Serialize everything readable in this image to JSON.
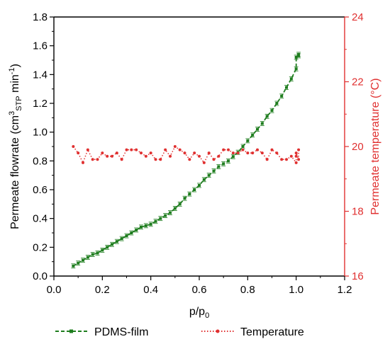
{
  "colors": {
    "flow": "#1e7d1e",
    "temp": "#e03030",
    "axis": "#000000"
  },
  "chart_data": {
    "type": "line",
    "x_label_main": "p/p",
    "x_label_sub": "0",
    "x_ticks": [
      "0.0",
      "0.2",
      "0.4",
      "0.6",
      "0.8",
      "1.0",
      "1.2"
    ],
    "xlim": [
      0.0,
      1.2
    ],
    "y_left": {
      "label_parts": {
        "a": "Permeate flowrate (cm",
        "sup1": "3",
        "sub": "STP",
        "b": " min",
        "sup2": "-1",
        "c": ")"
      },
      "ticks": [
        "0.0",
        "0.2",
        "0.4",
        "0.6",
        "0.8",
        "1.0",
        "1.2",
        "1.4",
        "1.6",
        "1.8"
      ],
      "ylim": [
        0.0,
        1.8
      ]
    },
    "y_right": {
      "label": "Permeate temperature (°C)",
      "ticks": [
        "16",
        "18",
        "20",
        "22",
        "24"
      ],
      "ylim": [
        16,
        24
      ]
    },
    "series": [
      {
        "name": "PDMS-film",
        "axis": "left",
        "style": "dashed",
        "marker": "square",
        "x": [
          0.08,
          0.1,
          0.12,
          0.14,
          0.16,
          0.18,
          0.2,
          0.22,
          0.24,
          0.26,
          0.28,
          0.3,
          0.32,
          0.34,
          0.36,
          0.38,
          0.4,
          0.42,
          0.44,
          0.46,
          0.48,
          0.5,
          0.52,
          0.54,
          0.56,
          0.58,
          0.6,
          0.62,
          0.64,
          0.66,
          0.68,
          0.7,
          0.72,
          0.74,
          0.76,
          0.78,
          0.8,
          0.82,
          0.84,
          0.86,
          0.88,
          0.9,
          0.92,
          0.94,
          0.96,
          0.98,
          1.0,
          1.0,
          1.01,
          1.01
        ],
        "y": [
          0.07,
          0.09,
          0.11,
          0.13,
          0.15,
          0.16,
          0.18,
          0.2,
          0.22,
          0.24,
          0.26,
          0.28,
          0.3,
          0.32,
          0.34,
          0.35,
          0.36,
          0.38,
          0.4,
          0.42,
          0.44,
          0.47,
          0.5,
          0.54,
          0.57,
          0.6,
          0.63,
          0.67,
          0.7,
          0.73,
          0.76,
          0.78,
          0.8,
          0.83,
          0.86,
          0.9,
          0.94,
          0.98,
          1.02,
          1.06,
          1.11,
          1.15,
          1.2,
          1.25,
          1.31,
          1.37,
          1.44,
          1.52,
          1.54,
          1.53
        ]
      },
      {
        "name": "Temperature",
        "axis": "right",
        "style": "dotted",
        "marker": "circle",
        "x": [
          0.08,
          0.1,
          0.12,
          0.14,
          0.16,
          0.18,
          0.2,
          0.22,
          0.24,
          0.26,
          0.28,
          0.3,
          0.32,
          0.34,
          0.36,
          0.38,
          0.4,
          0.42,
          0.44,
          0.46,
          0.48,
          0.5,
          0.52,
          0.54,
          0.56,
          0.58,
          0.6,
          0.62,
          0.64,
          0.66,
          0.68,
          0.7,
          0.72,
          0.74,
          0.76,
          0.78,
          0.8,
          0.82,
          0.84,
          0.86,
          0.88,
          0.9,
          0.92,
          0.94,
          0.96,
          0.98,
          1.0,
          1.0,
          1.0,
          1.01,
          1.01
        ],
        "y": [
          20.0,
          19.8,
          19.5,
          19.9,
          19.6,
          19.6,
          19.8,
          19.7,
          19.7,
          19.8,
          19.6,
          19.9,
          19.9,
          19.9,
          19.8,
          19.7,
          19.8,
          19.6,
          19.6,
          19.9,
          19.7,
          20.0,
          19.9,
          19.8,
          19.6,
          19.8,
          19.7,
          19.5,
          19.8,
          19.6,
          19.7,
          19.9,
          19.9,
          19.8,
          19.8,
          19.9,
          19.8,
          19.8,
          19.9,
          19.8,
          19.6,
          19.9,
          19.8,
          19.6,
          19.6,
          19.7,
          19.5,
          19.7,
          19.8,
          19.6,
          19.9
        ]
      }
    ],
    "legend_placement": "bottom"
  }
}
